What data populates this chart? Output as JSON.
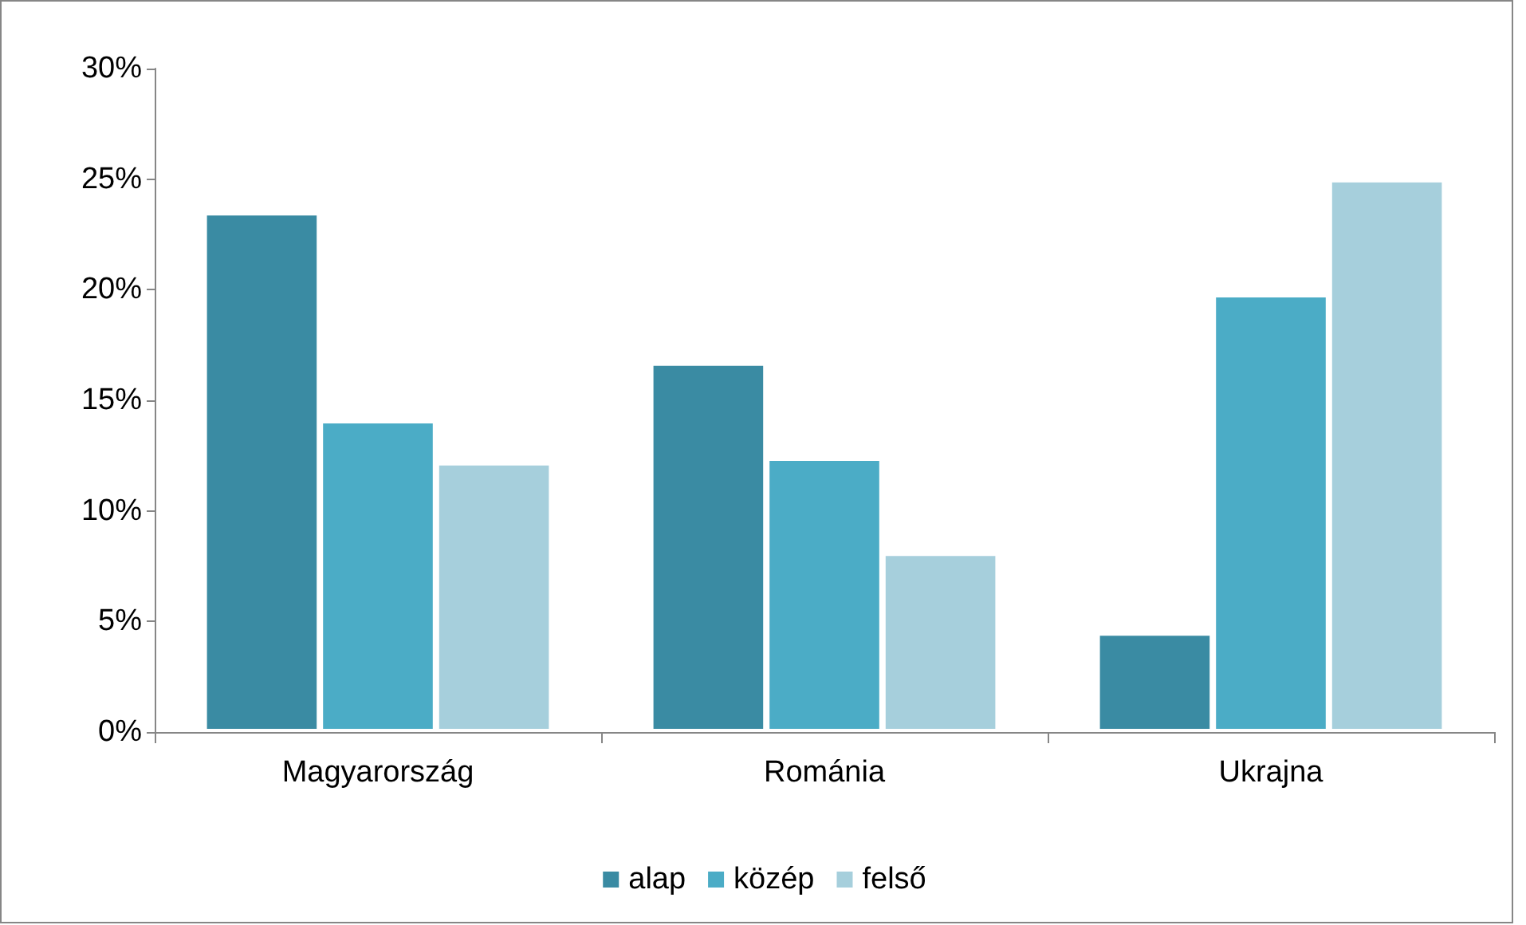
{
  "chart_data": {
    "type": "bar",
    "categories": [
      "Magyarország",
      "Románia",
      "Ukrajna"
    ],
    "series": [
      {
        "name": "alap",
        "color": "#3a8ba3",
        "values": [
          23.5,
          16.7,
          4.5
        ]
      },
      {
        "name": "közép",
        "color": "#4bacc6",
        "values": [
          14.1,
          12.4,
          19.8
        ]
      },
      {
        "name": "felső",
        "color": "#a6cfdc",
        "values": [
          12.2,
          8.1,
          25.0
        ]
      }
    ],
    "ylim": [
      0,
      30
    ],
    "yticks": [
      {
        "value": 0,
        "label": "0%"
      },
      {
        "value": 5,
        "label": "5%"
      },
      {
        "value": 10,
        "label": "10%"
      },
      {
        "value": 15,
        "label": "15%"
      },
      {
        "value": 20,
        "label": "20%"
      },
      {
        "value": 25,
        "label": "25%"
      },
      {
        "value": 30,
        "label": "30%"
      }
    ],
    "grid": false,
    "legend": "bottom"
  }
}
